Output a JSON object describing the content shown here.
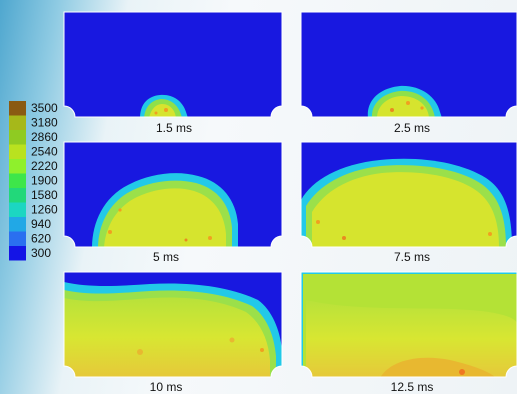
{
  "legend": {
    "values": [
      "3500",
      "3180",
      "2860",
      "2540",
      "2220",
      "1900",
      "1580",
      "1260",
      "940",
      "620",
      "300"
    ],
    "colors": [
      "#8a5a12",
      "#a6b81a",
      "#8fcb22",
      "#b9e21f",
      "#8ff02c",
      "#3ee64a",
      "#22d87a",
      "#1cd6c2",
      "#21a8e6",
      "#2a6ff0",
      "#1414e6"
    ]
  },
  "panels": [
    {
      "label": "1.5 ms"
    },
    {
      "label": "2.5 ms"
    },
    {
      "label": "5 ms"
    },
    {
      "label": "7.5 ms"
    },
    {
      "label": "10 ms"
    },
    {
      "label": "12.5 ms"
    }
  ],
  "colors": {
    "unburned": "#1818e0",
    "flame_edge": "#22c9e8",
    "flame_mid": "#7fe05a",
    "flame_core": "#d8ea2e",
    "hot_spot": "#f0a020",
    "panel_frame": "#ffffff"
  }
}
